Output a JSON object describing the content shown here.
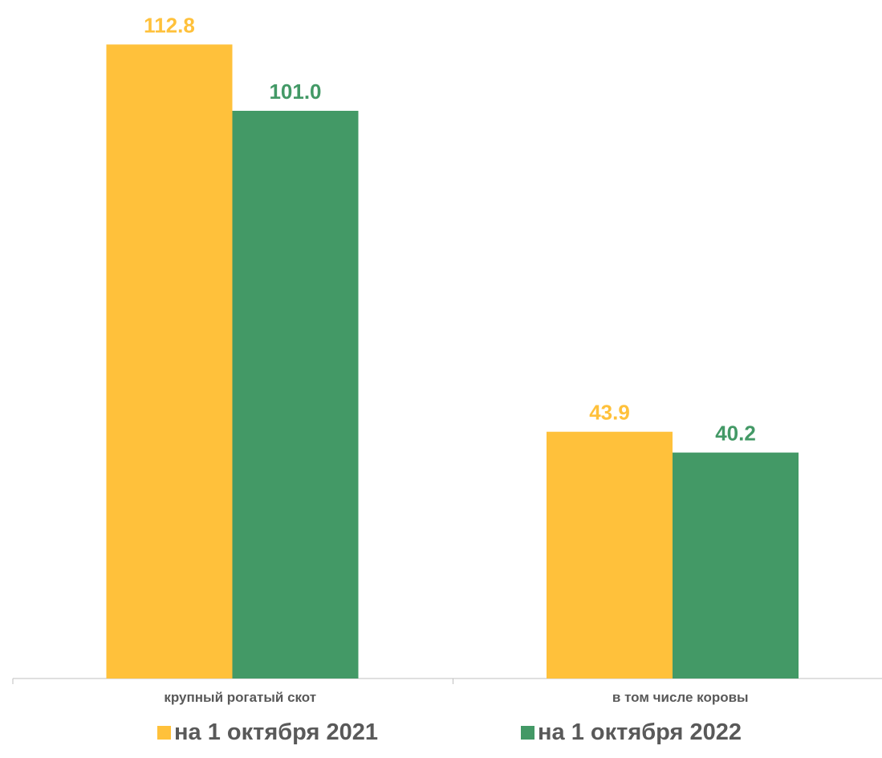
{
  "chart_data": {
    "type": "bar",
    "categories": [
      "крупный рогатый скот",
      "в том числе коровы"
    ],
    "series": [
      {
        "name": "на 1 октября 2021",
        "values": [
          112.8,
          43.9
        ],
        "labels": [
          "112.8",
          "43.9"
        ],
        "color": "#FFC13B"
      },
      {
        "name": "на 1 октября 2022",
        "values": [
          101.0,
          40.2
        ],
        "labels": [
          "101.0",
          "40.2"
        ],
        "color": "#439966"
      }
    ],
    "title": "",
    "xlabel": "",
    "ylabel": "",
    "ylim": [
      0,
      120
    ],
    "grid": false,
    "legend_position": "bottom"
  },
  "colors": {
    "axis": "#BFBFBF",
    "category_text": "#595959",
    "legend_text": "#595959"
  }
}
